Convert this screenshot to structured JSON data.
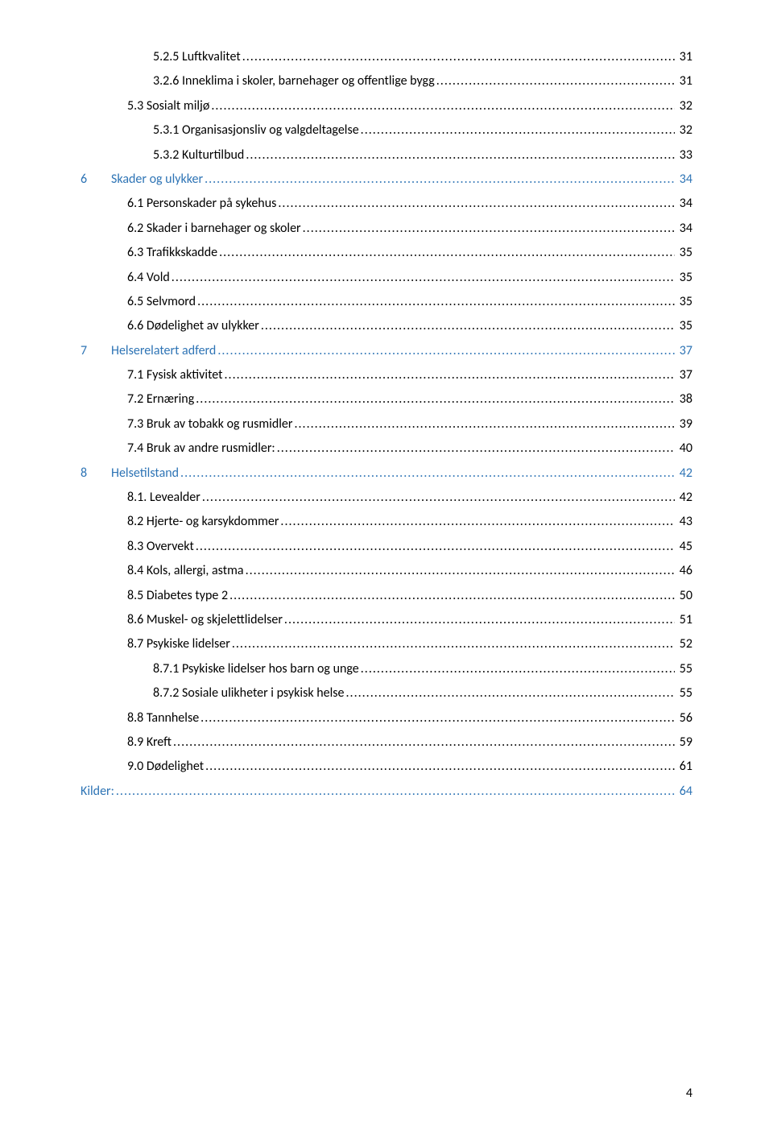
{
  "colors": {
    "link": "#2e74b5",
    "text": "#000000",
    "background": "#ffffff"
  },
  "typography": {
    "font_family": "Calibri",
    "font_size_pt": 11,
    "line_height": 1.9
  },
  "page_number": "4",
  "toc": [
    {
      "type": "sub2",
      "title": "5.2.5 Luftkvalitet",
      "page": "31"
    },
    {
      "type": "sub2",
      "title": "3.2.6 Inneklima i skoler, barnehager og offentlige bygg",
      "page": "31"
    },
    {
      "type": "sub1",
      "title": "5.3 Sosialt miljø",
      "page": "32"
    },
    {
      "type": "sub2",
      "title": "5.3.1 Organisasjonsliv og valgdeltagelse",
      "page": "32"
    },
    {
      "type": "sub2",
      "title": "5.3.2 Kulturtilbud",
      "page": "33"
    },
    {
      "type": "chapter",
      "num": "6",
      "title": "Skader og ulykker",
      "page": "34"
    },
    {
      "type": "sub1",
      "title": "6.1 Personskader på sykehus",
      "page": "34"
    },
    {
      "type": "sub1",
      "title": "6.2 Skader i barnehager og skoler",
      "page": "34"
    },
    {
      "type": "sub1",
      "title": "6.3 Trafikkskadde",
      "page": "35"
    },
    {
      "type": "sub1",
      "title": "6.4 Vold",
      "page": "35"
    },
    {
      "type": "sub1",
      "title": "6.5 Selvmord",
      "page": "35"
    },
    {
      "type": "sub1",
      "title": "6.6 Dødelighet av ulykker",
      "page": "35"
    },
    {
      "type": "chapter",
      "num": "7",
      "title": "Helserelatert adferd",
      "page": "37"
    },
    {
      "type": "sub1",
      "title": "7.1 Fysisk aktivitet",
      "page": "37"
    },
    {
      "type": "sub1",
      "title": "7.2 Ernæring",
      "page": "38"
    },
    {
      "type": "sub1",
      "title": "7.3 Bruk av tobakk og rusmidler",
      "page": "39"
    },
    {
      "type": "sub1",
      "title": "7.4 Bruk av andre rusmidler:",
      "page": "40"
    },
    {
      "type": "chapter",
      "num": "8",
      "title": "Helsetilstand",
      "page": "42"
    },
    {
      "type": "sub1",
      "title": "8.1. Levealder",
      "page": "42"
    },
    {
      "type": "sub1",
      "title": "8.2 Hjerte- og karsykdommer",
      "page": "43"
    },
    {
      "type": "sub1",
      "title": "8.3 Overvekt",
      "page": "45"
    },
    {
      "type": "sub1",
      "title": "8.4 Kols, allergi, astma",
      "page": "46"
    },
    {
      "type": "sub1",
      "title": "8.5 Diabetes type 2",
      "page": "50"
    },
    {
      "type": "sub1",
      "title": "8.6 Muskel- og skjelettlidelser",
      "page": "51"
    },
    {
      "type": "sub1",
      "title": "8.7 Psykiske lidelser",
      "page": "52"
    },
    {
      "type": "sub2",
      "title": "8.7.1 Psykiske lidelser hos barn og unge",
      "page": "55"
    },
    {
      "type": "sub2",
      "title": "8.7.2 Sosiale ulikheter i psykisk helse",
      "page": "55"
    },
    {
      "type": "sub1",
      "title": "8.8 Tannhelse",
      "page": "56"
    },
    {
      "type": "sub1",
      "title": "8.9 Kreft",
      "page": "59"
    },
    {
      "type": "sub1",
      "title": "9.0 Dødelighet",
      "page": "61"
    },
    {
      "type": "source",
      "title": "Kilder:",
      "page": "64"
    }
  ]
}
